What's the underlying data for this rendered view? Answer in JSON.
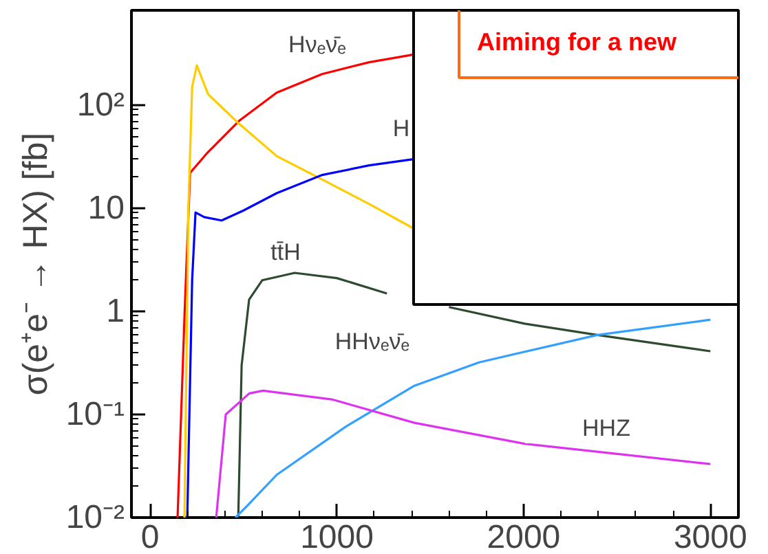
{
  "chart_data": {
    "type": "line",
    "ylabel": "σ(e⁺e⁻ → HX) [fb]",
    "log": "y",
    "grid": false,
    "xlim": [
      -100,
      3150
    ],
    "xticks": [
      0,
      1000,
      2000,
      3000
    ],
    "ylim": [
      0.01,
      830
    ],
    "yticks": [
      {
        "value": 0.01,
        "label": "10⁻²"
      },
      {
        "value": 0.1,
        "label": "10⁻¹"
      },
      1,
      10,
      {
        "value": 100,
        "label": "10²"
      }
    ],
    "series": [
      {
        "color": "#ff0000",
        "x": [
          147,
          185,
          214,
          310,
          479,
          678,
          921,
          1172,
          1415
        ],
        "values": [
          0.01,
          1,
          22,
          35,
          71,
          132,
          200,
          260,
          310
        ]
      },
      {
        "color": "#ffcc00",
        "x": [
          184,
          205,
          225,
          250,
          273,
          310,
          472,
          678,
          921,
          1172,
          1415
        ],
        "values": [
          0.01,
          10,
          150,
          243,
          190,
          128,
          67,
          32,
          19,
          11,
          6.3
        ]
      },
      {
        "color": "#0000ff",
        "x": [
          199,
          225,
          243,
          290,
          383,
          500,
          678,
          921,
          1172,
          1415
        ],
        "values": [
          0.01,
          2,
          9.1,
          8.2,
          7.6,
          9.5,
          14,
          21,
          26,
          30
        ]
      },
      {
        "color": "#2e4a30",
        "x": [
          472,
          490,
          530,
          600,
          774,
          1000,
          1268,
          1415,
          1600,
          2005,
          2395,
          3000
        ],
        "values": [
          0.01,
          0.3,
          1.3,
          2.0,
          2.36,
          2.1,
          1.49,
          null,
          1.1,
          0.76,
          0.59,
          0.41
        ]
      },
      {
        "color": "#33a0ff",
        "x": [
          457,
          520,
          678,
          1047,
          1415,
          1761,
          2395,
          3000
        ],
        "values": [
          0.01,
          0.013,
          0.026,
          0.076,
          0.19,
          0.32,
          0.59,
          0.83
        ]
      },
      {
        "color": "#dd33ee",
        "x": [
          354,
          405,
          531,
          604,
          973,
          1415,
          2005,
          3000
        ],
        "values": [
          0.01,
          0.1,
          0.16,
          0.17,
          0.14,
          0.083,
          0.052,
          0.033
        ]
      }
    ],
    "annotations": [
      "Hνₑν̄ₑ",
      "H",
      "tt̄H",
      "HHνₑν̄ₑ",
      "HHZ",
      "Aiming for a new"
    ]
  }
}
